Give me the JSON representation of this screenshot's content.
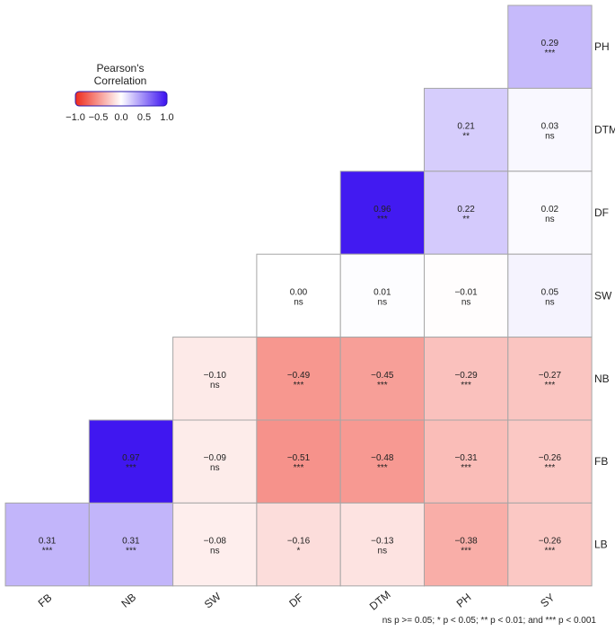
{
  "chart_data": {
    "type": "heatmap",
    "title": "",
    "x_labels": [
      "FB",
      "NB",
      "SW",
      "DF",
      "DTM",
      "PH",
      "SY"
    ],
    "y_labels": [
      "PH",
      "DTM",
      "DF",
      "SW",
      "NB",
      "FB",
      "LB"
    ],
    "cells": [
      {
        "x": "SY",
        "y": "PH",
        "value": 0.29,
        "sig": "***"
      },
      {
        "x": "PH",
        "y": "DTM",
        "value": 0.21,
        "sig": "**"
      },
      {
        "x": "SY",
        "y": "DTM",
        "value": 0.03,
        "sig": "ns"
      },
      {
        "x": "DTM",
        "y": "DF",
        "value": 0.96,
        "sig": "***"
      },
      {
        "x": "PH",
        "y": "DF",
        "value": 0.22,
        "sig": "**"
      },
      {
        "x": "SY",
        "y": "DF",
        "value": 0.02,
        "sig": "ns"
      },
      {
        "x": "DF",
        "y": "SW",
        "value": 0.0,
        "sig": "ns"
      },
      {
        "x": "DTM",
        "y": "SW",
        "value": 0.01,
        "sig": "ns"
      },
      {
        "x": "PH",
        "y": "SW",
        "value": -0.01,
        "sig": "ns"
      },
      {
        "x": "SY",
        "y": "SW",
        "value": 0.05,
        "sig": "ns"
      },
      {
        "x": "SW",
        "y": "NB",
        "value": -0.1,
        "sig": "ns"
      },
      {
        "x": "DF",
        "y": "NB",
        "value": -0.49,
        "sig": "***"
      },
      {
        "x": "DTM",
        "y": "NB",
        "value": -0.45,
        "sig": "***"
      },
      {
        "x": "PH",
        "y": "NB",
        "value": -0.29,
        "sig": "***"
      },
      {
        "x": "SY",
        "y": "NB",
        "value": -0.27,
        "sig": "***"
      },
      {
        "x": "NB",
        "y": "FB",
        "value": 0.97,
        "sig": "***"
      },
      {
        "x": "SW",
        "y": "FB",
        "value": -0.09,
        "sig": "ns"
      },
      {
        "x": "DF",
        "y": "FB",
        "value": -0.51,
        "sig": "***"
      },
      {
        "x": "DTM",
        "y": "FB",
        "value": -0.48,
        "sig": "***"
      },
      {
        "x": "PH",
        "y": "FB",
        "value": -0.31,
        "sig": "***"
      },
      {
        "x": "SY",
        "y": "FB",
        "value": -0.26,
        "sig": "***"
      },
      {
        "x": "FB",
        "y": "LB",
        "value": 0.31,
        "sig": "***"
      },
      {
        "x": "NB",
        "y": "LB",
        "value": 0.31,
        "sig": "***"
      },
      {
        "x": "SW",
        "y": "LB",
        "value": -0.08,
        "sig": "ns"
      },
      {
        "x": "DF",
        "y": "LB",
        "value": -0.16,
        "sig": "*"
      },
      {
        "x": "DTM",
        "y": "LB",
        "value": -0.13,
        "sig": "ns"
      },
      {
        "x": "PH",
        "y": "LB",
        "value": -0.38,
        "sig": "***"
      },
      {
        "x": "SY",
        "y": "LB",
        "value": -0.26,
        "sig": "***"
      }
    ],
    "legend": {
      "title_line1": "Pearson's",
      "title_line2": "Correlation",
      "ticks": [
        "−1.0",
        "−0.5",
        "0.0",
        "0.5",
        "1.0"
      ],
      "tick_values": [
        -1.0,
        -0.5,
        0.0,
        0.5,
        1.0
      ],
      "range": [
        -1.0,
        1.0
      ],
      "position": "top-left"
    },
    "footnote": "ns p >= 0.05; * p < 0.05; ** p < 0.01; and *** p < 0.001",
    "colors": {
      "negative": "#ee2a1b",
      "zero": "#ffffff",
      "positive": "#3a10f0",
      "cell_border": "#a6a6a6"
    }
  }
}
